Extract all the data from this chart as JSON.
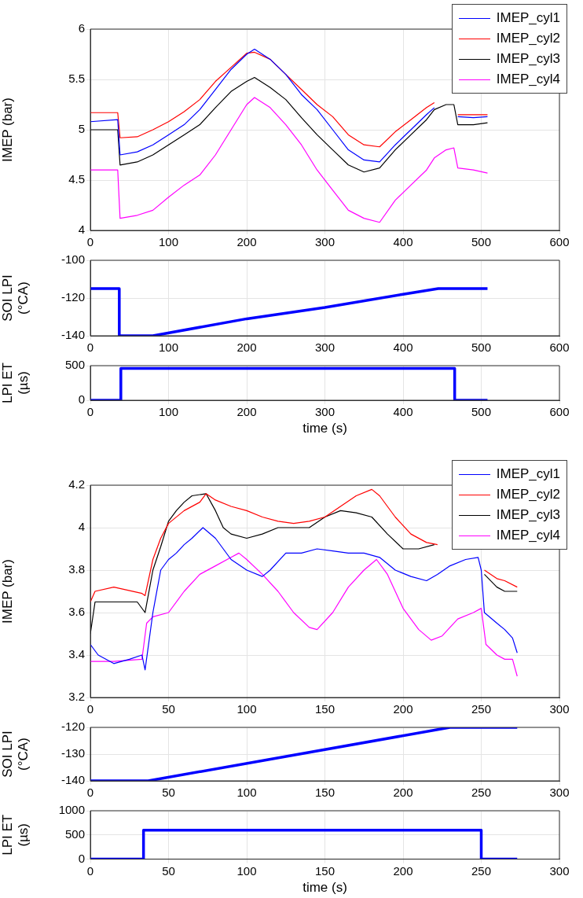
{
  "chart_data": [
    {
      "type": "line",
      "ylabel": "IMEP (bar)",
      "xlim": [
        0,
        600
      ],
      "xticks": [
        0,
        100,
        200,
        300,
        400,
        500,
        600
      ],
      "ylim": [
        4,
        6
      ],
      "yticks": [
        4,
        4.5,
        5,
        5.5,
        6
      ],
      "grid": true,
      "legend": "top right",
      "x": [
        0,
        35,
        38,
        60,
        80,
        100,
        120,
        140,
        160,
        180,
        200,
        210,
        230,
        250,
        270,
        290,
        310,
        330,
        350,
        370,
        390,
        410,
        430,
        440,
        455,
        465,
        470,
        490,
        508
      ],
      "series": [
        {
          "name": "IMEP_cyl1",
          "color": "#0000ff",
          "values": [
            5.08,
            5.1,
            4.75,
            4.78,
            4.85,
            4.95,
            5.05,
            5.2,
            5.4,
            5.6,
            5.75,
            5.8,
            5.7,
            5.55,
            5.35,
            5.2,
            5.0,
            4.8,
            4.7,
            4.68,
            4.85,
            5.0,
            5.15,
            5.22,
            null,
            null,
            5.13,
            5.12,
            5.13
          ]
        },
        {
          "name": "IMEP_cyl2",
          "color": "#ff0000",
          "values": [
            5.17,
            5.17,
            4.92,
            4.93,
            5.0,
            5.08,
            5.18,
            5.3,
            5.48,
            5.62,
            5.76,
            5.77,
            5.7,
            5.55,
            5.4,
            5.25,
            5.13,
            4.95,
            4.85,
            4.83,
            4.98,
            5.1,
            5.22,
            5.27,
            null,
            null,
            5.15,
            5.15,
            5.15
          ]
        },
        {
          "name": "IMEP_cyl3",
          "color": "#000000",
          "values": [
            5.0,
            5.0,
            4.65,
            4.68,
            4.75,
            4.85,
            4.95,
            5.05,
            5.22,
            5.38,
            5.48,
            5.52,
            5.42,
            5.3,
            5.12,
            4.95,
            4.8,
            4.65,
            4.58,
            4.62,
            4.8,
            4.95,
            5.1,
            5.2,
            5.25,
            5.25,
            5.05,
            5.05,
            5.07
          ]
        },
        {
          "name": "IMEP_cyl4",
          "color": "#ff00ff",
          "values": [
            4.6,
            4.6,
            4.12,
            4.15,
            4.2,
            4.33,
            4.45,
            4.55,
            4.75,
            5.0,
            5.25,
            5.32,
            5.22,
            5.05,
            4.85,
            4.6,
            4.4,
            4.2,
            4.12,
            4.08,
            4.3,
            4.45,
            4.6,
            4.72,
            4.8,
            4.82,
            4.62,
            4.6,
            4.57
          ]
        }
      ]
    },
    {
      "type": "line",
      "ylabel": "SOI LPI\n(°CA)",
      "xlim": [
        0,
        600
      ],
      "xticks": [
        0,
        100,
        200,
        300,
        400,
        500,
        600
      ],
      "ylim": [
        -140,
        -100
      ],
      "yticks": [
        -140,
        -120,
        -100
      ],
      "grid": true,
      "x": [
        0,
        37,
        37,
        80,
        200,
        300,
        400,
        445,
        508
      ],
      "series": [
        {
          "color": "#0000ff",
          "values": [
            -115,
            -115,
            -140,
            -140,
            -131,
            -125,
            -118,
            -115,
            -115
          ]
        }
      ]
    },
    {
      "type": "line",
      "ylabel": "LPI ET\n(µs)",
      "xlabel": "time (s)",
      "xlim": [
        0,
        600
      ],
      "xticks": [
        0,
        100,
        200,
        300,
        400,
        500,
        600
      ],
      "ylim": [
        0,
        500
      ],
      "yticks": [
        0,
        500
      ],
      "grid": true,
      "x": [
        0,
        39,
        39,
        466,
        466,
        508
      ],
      "series": [
        {
          "color": "#0000ff",
          "values": [
            0,
            0,
            460,
            460,
            0,
            0
          ]
        }
      ]
    },
    {
      "type": "line",
      "ylabel": "IMEP (bar)",
      "xlim": [
        0,
        300
      ],
      "xticks": [
        0,
        50,
        100,
        150,
        200,
        250,
        300
      ],
      "ylim": [
        3.2,
        4.2
      ],
      "yticks": [
        3.2,
        3.4,
        3.6,
        3.8,
        4,
        4.2
      ],
      "grid": true,
      "legend": "top right",
      "series": [
        {
          "name": "IMEP_cyl1",
          "color": "#0000ff",
          "x": [
            0,
            5,
            15,
            25,
            33,
            35,
            40,
            45,
            50,
            55,
            60,
            65,
            72,
            80,
            90,
            100,
            110,
            115,
            125,
            135,
            145,
            155,
            165,
            175,
            185,
            195,
            205,
            215,
            222,
            230,
            240,
            248,
            250,
            252,
            260,
            265,
            270,
            273
          ],
          "values": [
            3.45,
            3.4,
            3.36,
            3.38,
            3.4,
            3.33,
            3.6,
            3.8,
            3.85,
            3.88,
            3.92,
            3.95,
            4.0,
            3.95,
            3.85,
            3.8,
            3.77,
            3.8,
            3.88,
            3.88,
            3.9,
            3.89,
            3.88,
            3.88,
            3.86,
            3.8,
            3.77,
            3.75,
            3.78,
            3.82,
            3.85,
            3.86,
            3.8,
            3.6,
            3.55,
            3.52,
            3.48,
            3.41
          ]
        },
        {
          "name": "IMEP_cyl2",
          "color": "#ff0000",
          "x": [
            0,
            3,
            15,
            33,
            35,
            40,
            45,
            50,
            60,
            70,
            74,
            80,
            90,
            100,
            110,
            120,
            130,
            140,
            150,
            160,
            170,
            180,
            185,
            195,
            205,
            215,
            222,
            224,
            252,
            260,
            265,
            273
          ],
          "values": [
            3.65,
            3.7,
            3.72,
            3.69,
            3.68,
            3.85,
            3.95,
            4.02,
            4.08,
            4.12,
            4.16,
            4.13,
            4.1,
            4.08,
            4.05,
            4.03,
            4.02,
            4.03,
            4.05,
            4.1,
            4.15,
            4.18,
            4.15,
            4.05,
            3.97,
            3.93,
            3.92,
            null,
            3.8,
            3.76,
            3.75,
            3.72
          ]
        },
        {
          "name": "IMEP_cyl3",
          "color": "#000000",
          "x": [
            0,
            3,
            15,
            30,
            35,
            40,
            45,
            50,
            55,
            60,
            65,
            74,
            80,
            85,
            90,
            100,
            110,
            120,
            130,
            140,
            150,
            160,
            170,
            180,
            190,
            200,
            210,
            220,
            224,
            252,
            260,
            265,
            273
          ],
          "values": [
            3.5,
            3.65,
            3.65,
            3.65,
            3.6,
            3.8,
            3.91,
            4.03,
            4.08,
            4.12,
            4.15,
            4.16,
            4.08,
            4.0,
            3.97,
            3.95,
            3.97,
            4.0,
            4.0,
            4.0,
            4.05,
            4.08,
            4.07,
            4.05,
            3.97,
            3.9,
            3.9,
            3.92,
            null,
            3.78,
            3.72,
            3.7,
            3.7
          ]
        },
        {
          "name": "IMEP_cyl4",
          "color": "#ff00ff",
          "x": [
            0,
            15,
            33,
            36,
            40,
            50,
            60,
            70,
            80,
            90,
            95,
            100,
            110,
            120,
            130,
            140,
            145,
            155,
            165,
            175,
            183,
            190,
            200,
            210,
            218,
            225,
            235,
            245,
            250,
            253,
            260,
            265,
            270,
            273
          ],
          "values": [
            3.37,
            3.37,
            3.38,
            3.55,
            3.58,
            3.6,
            3.7,
            3.78,
            3.82,
            3.86,
            3.88,
            3.85,
            3.78,
            3.7,
            3.6,
            3.53,
            3.52,
            3.6,
            3.72,
            3.8,
            3.85,
            3.78,
            3.62,
            3.52,
            3.47,
            3.49,
            3.57,
            3.6,
            3.62,
            3.45,
            3.4,
            3.38,
            3.38,
            3.3
          ]
        }
      ]
    },
    {
      "type": "line",
      "ylabel": "SOI LPI\n(°CA)",
      "xlim": [
        0,
        300
      ],
      "xticks": [
        0,
        50,
        100,
        150,
        200,
        250,
        300
      ],
      "ylim": [
        -140,
        -120
      ],
      "yticks": [
        -140,
        -130,
        -120
      ],
      "grid": true,
      "x": [
        0,
        37,
        230,
        273
      ],
      "series": [
        {
          "color": "#0000ff",
          "values": [
            -140,
            -140,
            -120,
            -120
          ]
        }
      ]
    },
    {
      "type": "line",
      "ylabel": "LPI ET\n(µs)",
      "xlabel": "time (s)",
      "xlim": [
        0,
        300
      ],
      "xticks": [
        0,
        50,
        100,
        150,
        200,
        250,
        300
      ],
      "ylim": [
        0,
        1000
      ],
      "yticks": [
        0,
        500,
        1000
      ],
      "grid": true,
      "x": [
        0,
        34,
        34,
        250,
        250,
        273
      ],
      "series": [
        {
          "color": "#0000ff",
          "values": [
            0,
            0,
            600,
            600,
            0,
            0
          ]
        }
      ]
    }
  ]
}
